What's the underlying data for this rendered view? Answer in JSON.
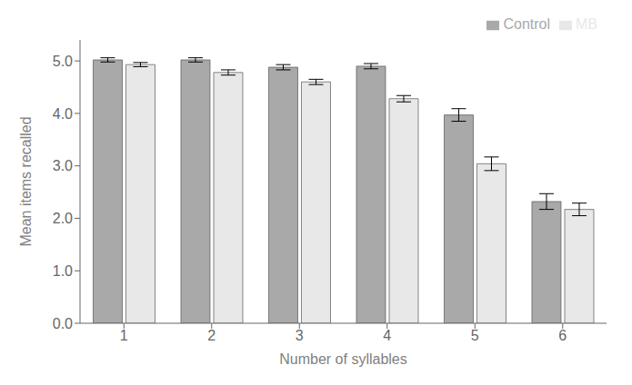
{
  "chart_data": {
    "type": "bar",
    "xlabel": "Number of syllables",
    "ylabel": "Mean items recalled",
    "categories": [
      1,
      2,
      3,
      4,
      5,
      6
    ],
    "series": [
      {
        "name": "Control",
        "color": "#A9A9A9",
        "values": [
          5.02,
          5.02,
          4.88,
          4.9,
          3.97,
          2.32
        ],
        "errors": [
          0.04,
          0.04,
          0.05,
          0.05,
          0.12,
          0.15
        ]
      },
      {
        "name": "MB",
        "color": "#E8E8E8",
        "values": [
          4.93,
          4.78,
          4.6,
          4.28,
          3.04,
          2.17
        ],
        "errors": [
          0.04,
          0.05,
          0.05,
          0.06,
          0.13,
          0.12
        ]
      }
    ],
    "ylim": [
      0.0,
      5.4
    ],
    "yticks": [
      {
        "value": 0.0,
        "label": "0.0"
      },
      {
        "value": 1.0,
        "label": "1.0"
      },
      {
        "value": 2.0,
        "label": "2.0"
      },
      {
        "value": 3.0,
        "label": "3.0"
      },
      {
        "value": 4.0,
        "label": "4.0"
      },
      {
        "value": 5.0,
        "label": "5.0"
      }
    ],
    "grid": false,
    "legend": "upper right"
  }
}
